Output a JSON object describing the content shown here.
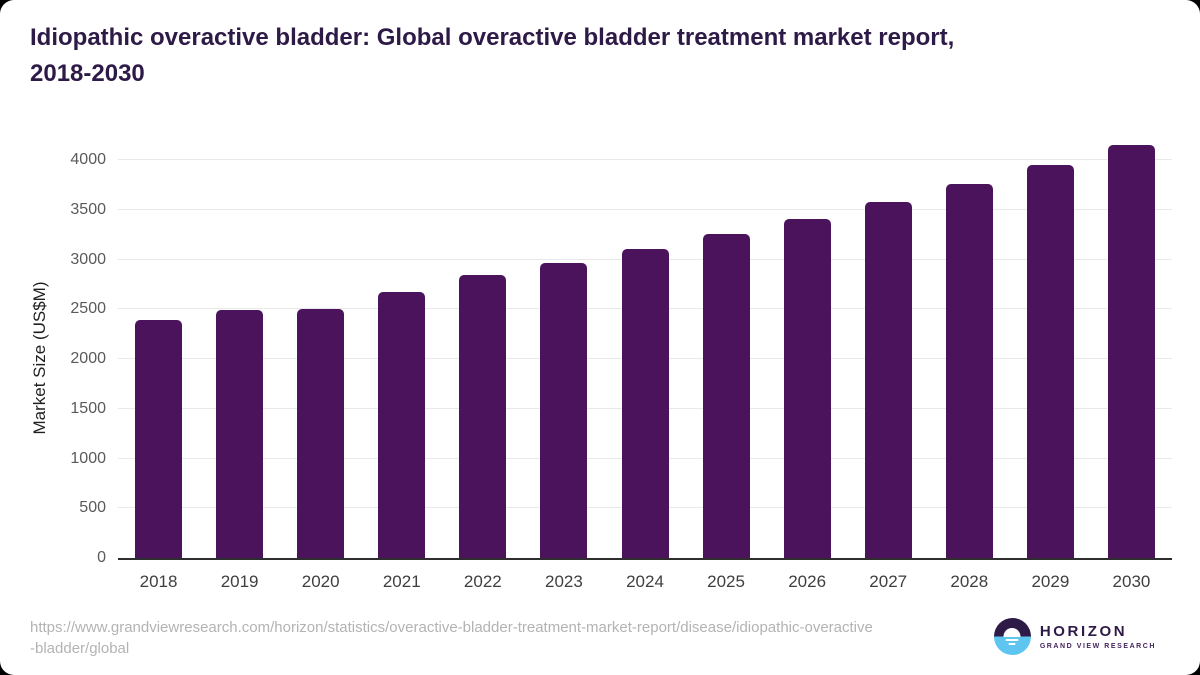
{
  "header": {
    "title_line1": "Idiopathic overactive bladder: Global overactive bladder treatment market report,",
    "title_line2": "2018-2030",
    "title_color": "#2e1a47"
  },
  "chart_data": {
    "type": "bar",
    "title": "Idiopathic overactive bladder: Global overactive bladder treatment market report, 2018-2030",
    "xlabel": "",
    "ylabel": "Market Size (US$M)",
    "categories": [
      "2018",
      "2019",
      "2020",
      "2021",
      "2022",
      "2023",
      "2024",
      "2025",
      "2026",
      "2027",
      "2028",
      "2029",
      "2030"
    ],
    "values": [
      2390,
      2490,
      2500,
      2670,
      2840,
      2970,
      3110,
      3260,
      3410,
      3580,
      3760,
      3950,
      4150
    ],
    "ylim": [
      0,
      4000
    ],
    "yticks": [
      0,
      500,
      1000,
      1500,
      2000,
      2500,
      3000,
      3500,
      4000
    ],
    "grid": true,
    "legend_position": "none",
    "bar_color": "#4a135c",
    "gridline_color": "#e9e9e9",
    "axis_line_color": "#2e2e2e"
  },
  "footer": {
    "source_url_line1": "https://www.grandviewresearch.com/horizon/statistics/overactive-bladder-treatment-market-report/disease/idiopathic-overactive",
    "source_url_line2": "-bladder/global",
    "logo": {
      "name": "HORIZON",
      "subtitle": "GRAND VIEW RESEARCH",
      "purple": "#2e1a47",
      "blue": "#5ec4f0"
    }
  }
}
